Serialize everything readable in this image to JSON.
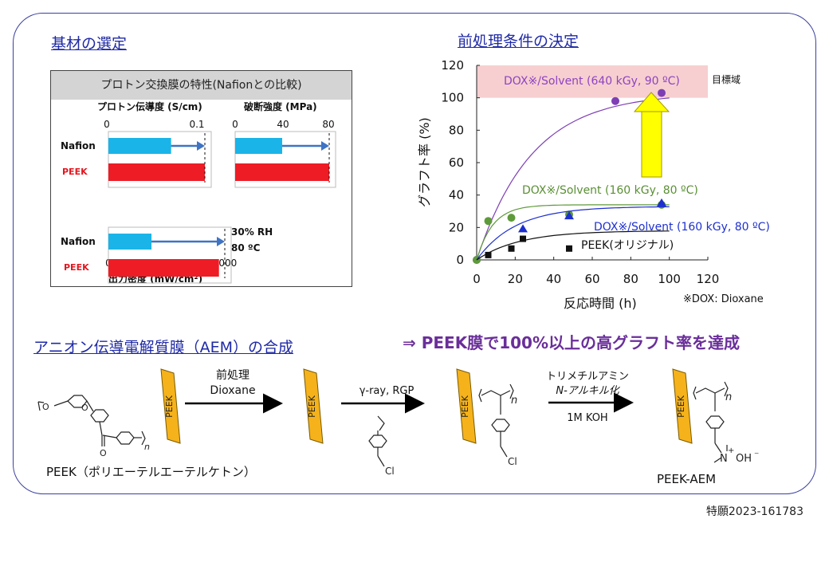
{
  "headings": {
    "substrate": "基材の選定",
    "pretreatment": "前処理条件の決定",
    "synthesis": "アニオン伝導電解質膜（AEM）の合成"
  },
  "conclusion": "⇒  PEEK膜で100%以上の高グラフト率を達成",
  "patent": "特願2023-161783",
  "properties_panel": {
    "title": "プロトン交換膜の特性(Nafionとの比較)",
    "conductivity_label": "プロトン伝導度 (S/cm)",
    "conductivity_ticks": [
      "0",
      "0.1"
    ],
    "strength_label": "破断強度 (MPa)",
    "strength_ticks": [
      "0",
      "40",
      "80"
    ],
    "power_label": "出力密度 (mW/cm²)",
    "power_ticks": [
      "0",
      "1000"
    ],
    "condition_rh": "30% RH",
    "condition_temp": "80 ºC",
    "nafion_label": "Nafion",
    "peek_label": "PEEK",
    "nafion_color": "#1ab4e8",
    "peek_color": "#ee1c25",
    "values": {
      "conductivity": {
        "nafion": 0.065,
        "peek": 0.1,
        "max": 0.1
      },
      "strength": {
        "nafion": 40,
        "peek": 80,
        "max": 80
      },
      "power": {
        "nafion": 370,
        "peek": 950,
        "max": 1000
      }
    }
  },
  "chart_data": {
    "type": "scatter",
    "xlabel": "反応時間 (h)",
    "ylabel": "グラフト率 (%)",
    "xlim": [
      0,
      120
    ],
    "ylim": [
      0,
      120
    ],
    "x_ticks": [
      "0",
      "20",
      "40",
      "60",
      "80",
      "100",
      "120"
    ],
    "y_ticks": [
      "0",
      "20",
      "40",
      "60",
      "80",
      "100",
      "120"
    ],
    "target_label": "目標域",
    "target_range": [
      100,
      120
    ],
    "footnote": "※DOX: Dioxane",
    "series": [
      {
        "name": "DOX※/Solvent (640 kGy, 90 ºC)",
        "marker": "circle",
        "color": "#7e3fb5",
        "x": [
          0,
          72,
          96
        ],
        "y": [
          0,
          98,
          103
        ]
      },
      {
        "name": "DOX※/Solvent (160 kGy, 80 ºC)",
        "marker": "circle",
        "color": "#5e9a3a",
        "x": [
          0,
          6,
          18,
          48,
          96
        ],
        "y": [
          0,
          24,
          26,
          28,
          34
        ]
      },
      {
        "name": "DOX※/Solvent (160 kGy, 80 ºC)",
        "marker": "triangle",
        "color": "#1d2fd0",
        "x": [
          24,
          48,
          96
        ],
        "y": [
          19,
          27,
          35
        ]
      },
      {
        "name": "PEEK(オリジナル)",
        "marker": "square",
        "color": "#111111",
        "x": [
          6,
          18,
          24,
          48
        ],
        "y": [
          3,
          7,
          13,
          7
        ]
      }
    ]
  },
  "synthesis": {
    "membrane_tag": "PEEK",
    "peek_name": "PEEK（ポリエーテルエーテルケトン）",
    "step1_top": "前処理",
    "step1_bottom": "Dioxane",
    "step2_top": "γ-ray, RGP",
    "step3_top_a": "トリメチルアミン",
    "step3_top_b": "N-アルキル化",
    "step3_bottom": "1M KOH",
    "product_label": "PEEK-AEM",
    "subscript_n": "n",
    "cl_label": "Cl",
    "o_label": "O",
    "n_label": "N",
    "oh_label": "OH",
    "minus": "⁻",
    "plus": "+"
  }
}
